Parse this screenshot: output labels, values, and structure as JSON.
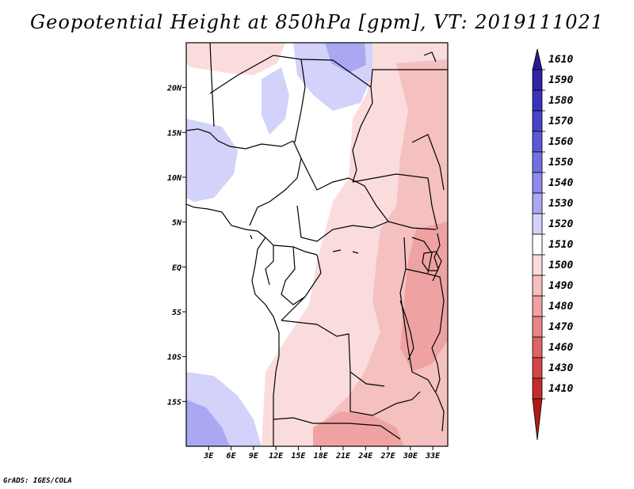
{
  "title": "Geopotential Height at 850hPa [gpm], VT: 2019111021",
  "credit": "GrADS: IGES/COLA",
  "map": {
    "lon_range": [
      0,
      35
    ],
    "lat_range": [
      -20,
      25
    ],
    "lat_ticks": [
      {
        "value": 20,
        "label": "20N"
      },
      {
        "value": 15,
        "label": "15N"
      },
      {
        "value": 10,
        "label": "10N"
      },
      {
        "value": 5,
        "label": "5N"
      },
      {
        "value": 0,
        "label": "EQ"
      },
      {
        "value": -5,
        "label": "5S"
      },
      {
        "value": -10,
        "label": "10S"
      },
      {
        "value": -15,
        "label": "15S"
      }
    ],
    "lon_ticks": [
      {
        "value": 3,
        "label": "3E"
      },
      {
        "value": 6,
        "label": "6E"
      },
      {
        "value": 9,
        "label": "9E"
      },
      {
        "value": 12,
        "label": "12E"
      },
      {
        "value": 15,
        "label": "15E"
      },
      {
        "value": 18,
        "label": "18E"
      },
      {
        "value": 21,
        "label": "21E"
      },
      {
        "value": 24,
        "label": "24E"
      },
      {
        "value": 27,
        "label": "27E"
      },
      {
        "value": 30,
        "label": "30E"
      },
      {
        "value": 33,
        "label": "33E"
      }
    ]
  },
  "colorbar": [
    {
      "label": "1610",
      "color": "#2a1896"
    },
    {
      "label": "1590",
      "color": "#2e22a8"
    },
    {
      "label": "1580",
      "color": "#3a32b8"
    },
    {
      "label": "1570",
      "color": "#4a44c8"
    },
    {
      "label": "1560",
      "color": "#5e58d6"
    },
    {
      "label": "1550",
      "color": "#7470e0"
    },
    {
      "label": "1540",
      "color": "#8e8aea"
    },
    {
      "label": "1530",
      "color": "#aaa8f2"
    },
    {
      "label": "1520",
      "color": "#d2d2fa"
    },
    {
      "label": "1510",
      "color": "#ffffff"
    },
    {
      "label": "1500",
      "color": "#fbdcdc"
    },
    {
      "label": "1490",
      "color": "#f5c0c0"
    },
    {
      "label": "1480",
      "color": "#efa2a2"
    },
    {
      "label": "1470",
      "color": "#e88484"
    },
    {
      "label": "1460",
      "color": "#e06464"
    },
    {
      "label": "1430",
      "color": "#d44646"
    },
    {
      "label": "1410",
      "color": "#c42c2c"
    },
    {
      "label": "",
      "color": "#b01a1a"
    }
  ]
}
